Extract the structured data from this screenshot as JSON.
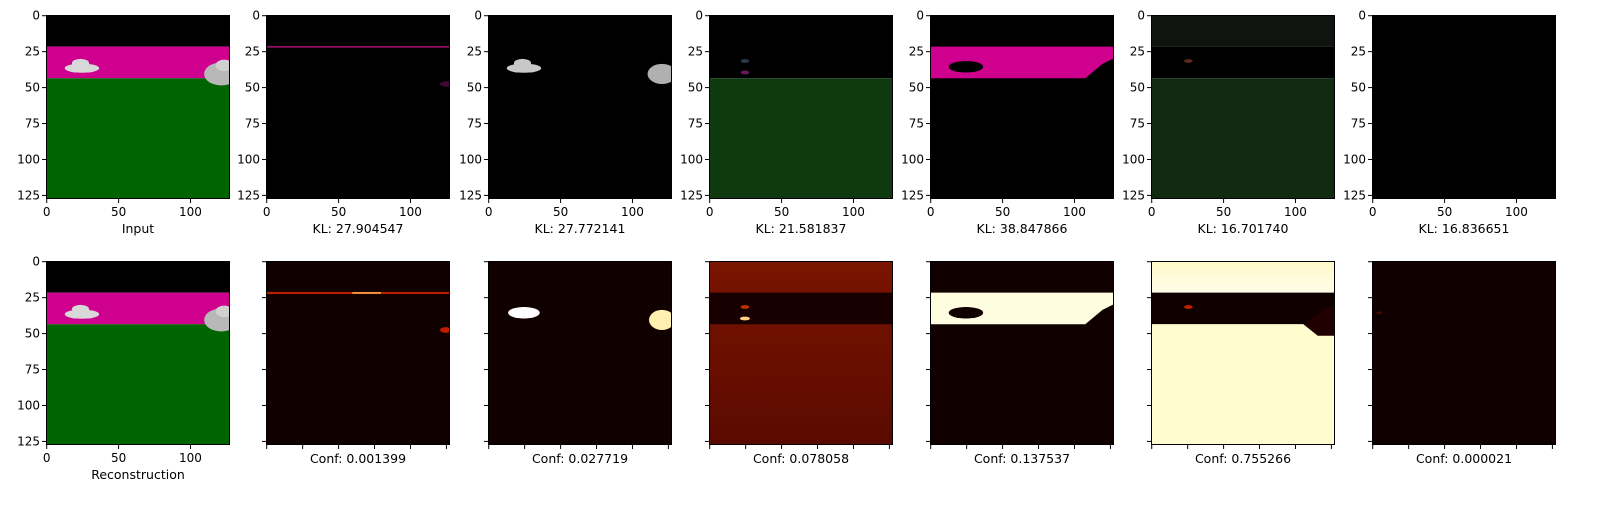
{
  "chart_data": {
    "type": "image-grid",
    "image_size": [
      128,
      128
    ],
    "axis_ticks": [
      "0",
      "25",
      "50",
      "75",
      "100",
      "125"
    ],
    "x_ticks": [
      "0",
      "50",
      "100"
    ],
    "rows": [
      {
        "panels": [
          {
            "caption": "Input",
            "kind": "scene"
          },
          {
            "caption": "KL: 27.904547",
            "kind": "slot-line"
          },
          {
            "caption": "KL: 27.772141",
            "kind": "slot-cars"
          },
          {
            "caption": "KL: 21.581837",
            "kind": "slot-green"
          },
          {
            "caption": "KL: 38.847866",
            "kind": "slot-magenta"
          },
          {
            "caption": "KL: 16.701740",
            "kind": "slot-darkgreen"
          },
          {
            "caption": "KL: 16.836651",
            "kind": "slot-empty"
          }
        ]
      },
      {
        "panels": [
          {
            "caption": "Reconstruction",
            "kind": "scene"
          },
          {
            "caption": "Conf: 0.001399",
            "kind": "mask-line",
            "confidence": 0.001399
          },
          {
            "caption": "Conf: 0.027719",
            "kind": "mask-cars",
            "confidence": 0.027719
          },
          {
            "caption": "Conf: 0.078058",
            "kind": "mask-ground",
            "confidence": 0.078058
          },
          {
            "caption": "Conf: 0.137537",
            "kind": "mask-magenta",
            "confidence": 0.137537
          },
          {
            "caption": "Conf: 0.755266",
            "kind": "mask-bright",
            "confidence": 0.755266
          },
          {
            "caption": "Conf: 0.000021",
            "kind": "mask-empty",
            "confidence": 2.1e-05
          }
        ]
      }
    ],
    "colors": {
      "sky": "#000000",
      "band": "#d0008e",
      "ground": "#006400",
      "car": "#d8d8d8",
      "heat_low": "#100000",
      "heat_mid": "#a02000",
      "heat_high": "#fffbd6"
    }
  }
}
